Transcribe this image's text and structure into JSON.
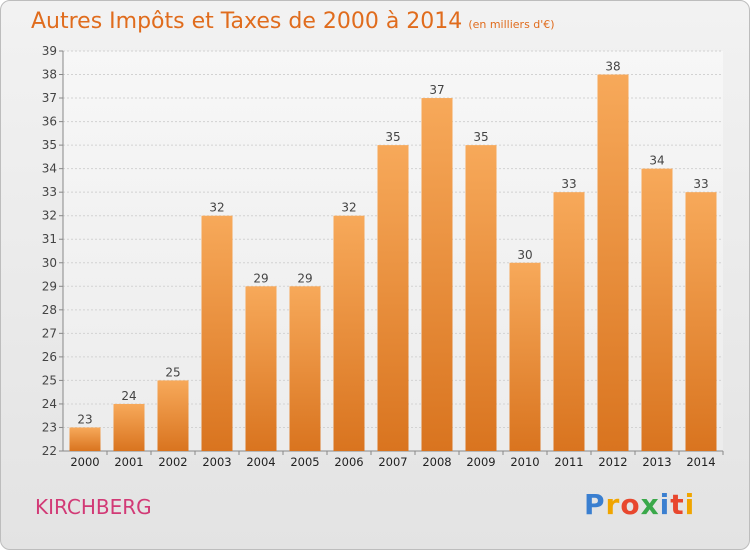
{
  "header": {
    "title": "Autres Impôts et Taxes de 2000 à 2014",
    "unit": "(en milliers d'€)"
  },
  "footer": {
    "place": "KIRCHBERG",
    "logo_letters": [
      "P",
      "r",
      "o",
      "x",
      "i",
      "t",
      "i"
    ],
    "logo_colors": [
      "#3a7fd0",
      "#f0a500",
      "#e8472e",
      "#3aa84a",
      "#3a7fd0",
      "#e8472e",
      "#f0a500"
    ]
  },
  "chart_data": {
    "type": "bar",
    "categories": [
      "2000",
      "2001",
      "2002",
      "2003",
      "2004",
      "2005",
      "2006",
      "2007",
      "2008",
      "2009",
      "2010",
      "2011",
      "2012",
      "2013",
      "2014"
    ],
    "values": [
      23,
      24,
      25,
      32,
      29,
      29,
      32,
      35,
      37,
      35,
      30,
      33,
      38,
      34,
      33
    ],
    "title": "Autres Impôts et Taxes de 2000 à 2014",
    "xlabel": "",
    "ylabel": "",
    "ylim": [
      22,
      39
    ],
    "yticks": [
      22,
      23,
      24,
      25,
      26,
      27,
      28,
      29,
      30,
      31,
      32,
      33,
      34,
      35,
      36,
      37,
      38,
      39
    ],
    "grid": true,
    "bar_color_top": "#f7a95a",
    "bar_color_bottom": "#d9741f",
    "data_labels": true
  }
}
